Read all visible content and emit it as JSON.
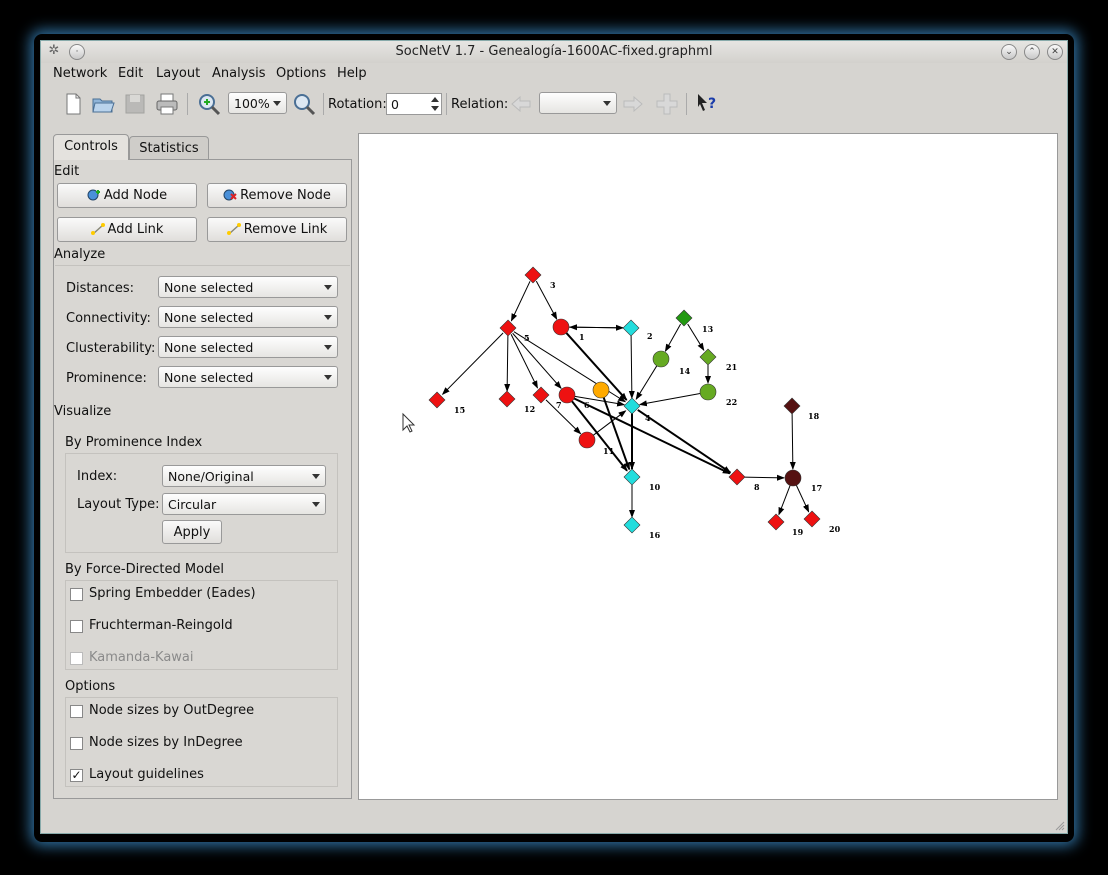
{
  "window": {
    "title": "SocNetV 1.7 - Genealogía-1600AC-fixed.graphml"
  },
  "menu": [
    "Network",
    "Edit",
    "Layout",
    "Analysis",
    "Options",
    "Help"
  ],
  "toolbar": {
    "zoom": "100%",
    "rotation_label": "Rotation:",
    "rotation_value": "0",
    "relation_label": "Relation:",
    "relation_value": ""
  },
  "tabs": {
    "controls": "Controls",
    "statistics": "Statistics"
  },
  "edit": {
    "heading": "Edit",
    "add_node": "Add Node",
    "remove_node": "Remove Node",
    "add_link": "Add Link",
    "remove_link": "Remove Link"
  },
  "analyze": {
    "heading": "Analyze",
    "rows": [
      {
        "label": "Distances:",
        "value": "None selected"
      },
      {
        "label": "Connectivity:",
        "value": "None selected"
      },
      {
        "label": "Clusterability:",
        "value": "None selected"
      },
      {
        "label": "Prominence:",
        "value": "None selected"
      }
    ]
  },
  "visualize": {
    "heading": "Visualize",
    "prominence_heading": "By Prominence Index",
    "index_label": "Index:",
    "index_value": "None/Original",
    "layout_type_label": "Layout Type:",
    "layout_type_value": "Circular",
    "apply": "Apply",
    "force_heading": "By Force-Directed Model",
    "spring": "Spring Embedder (Eades)",
    "fruchterman": "Fruchterman-Reingold",
    "kamada": "Kamanda-Kawai"
  },
  "options": {
    "heading": "Options",
    "outdegree": "Node sizes by OutDegree",
    "indegree": "Node sizes by InDegree",
    "guidelines": "Layout guidelines",
    "guidelines_checked": true
  },
  "colors": {
    "red": "#ee1111",
    "cyan": "#22dddd",
    "green": "#229911",
    "olive": "#66aa22",
    "orange": "#ffaa00",
    "maroon": "#551111"
  },
  "graph": {
    "nodes": [
      {
        "id": "1",
        "shape": "circle",
        "color": "red"
      },
      {
        "id": "2",
        "shape": "diamond",
        "color": "cyan"
      },
      {
        "id": "3",
        "shape": "diamond",
        "color": "red"
      },
      {
        "id": "4",
        "shape": "diamond",
        "color": "cyan"
      },
      {
        "id": "5",
        "shape": "diamond",
        "color": "red"
      },
      {
        "id": "6",
        "shape": "circle",
        "color": "red"
      },
      {
        "id": "7",
        "shape": "diamond",
        "color": "red"
      },
      {
        "id": "8",
        "shape": "diamond",
        "color": "red"
      },
      {
        "id": "9",
        "shape": "circle",
        "color": "orange"
      },
      {
        "id": "10",
        "shape": "diamond",
        "color": "cyan"
      },
      {
        "id": "11",
        "shape": "circle",
        "color": "red"
      },
      {
        "id": "12",
        "shape": "diamond",
        "color": "red"
      },
      {
        "id": "13",
        "shape": "diamond",
        "color": "green"
      },
      {
        "id": "14",
        "shape": "circle",
        "color": "olive"
      },
      {
        "id": "15",
        "shape": "diamond",
        "color": "red"
      },
      {
        "id": "16",
        "shape": "diamond",
        "color": "cyan"
      },
      {
        "id": "17",
        "shape": "circle",
        "color": "maroon"
      },
      {
        "id": "18",
        "shape": "diamond",
        "color": "maroon"
      },
      {
        "id": "19",
        "shape": "diamond",
        "color": "red"
      },
      {
        "id": "20",
        "shape": "diamond",
        "color": "red"
      },
      {
        "id": "21",
        "shape": "diamond",
        "color": "olive"
      },
      {
        "id": "22",
        "shape": "circle",
        "color": "olive"
      }
    ],
    "edges": [
      [
        "3",
        "5"
      ],
      [
        "3",
        "1"
      ],
      [
        "1",
        "2"
      ],
      [
        "2",
        "1"
      ],
      [
        "1",
        "4"
      ],
      [
        "2",
        "4"
      ],
      [
        "5",
        "15"
      ],
      [
        "5",
        "12"
      ],
      [
        "5",
        "7"
      ],
      [
        "5",
        "6"
      ],
      [
        "5",
        "4"
      ],
      [
        "7",
        "11"
      ],
      [
        "11",
        "4"
      ],
      [
        "6",
        "4"
      ],
      [
        "6",
        "8"
      ],
      [
        "4",
        "8"
      ],
      [
        "9",
        "10"
      ],
      [
        "6",
        "10"
      ],
      [
        "4",
        "10"
      ],
      [
        "10",
        "16"
      ],
      [
        "13",
        "14"
      ],
      [
        "13",
        "21"
      ],
      [
        "14",
        "4"
      ],
      [
        "21",
        "22"
      ],
      [
        "22",
        "4"
      ],
      [
        "8",
        "17"
      ],
      [
        "18",
        "17"
      ],
      [
        "17",
        "19"
      ],
      [
        "17",
        "20"
      ]
    ],
    "thick_edges": [
      [
        "6",
        "8"
      ],
      [
        "4",
        "8"
      ],
      [
        "9",
        "10"
      ],
      [
        "6",
        "10"
      ],
      [
        "4",
        "10"
      ],
      [
        "1",
        "4"
      ]
    ]
  }
}
